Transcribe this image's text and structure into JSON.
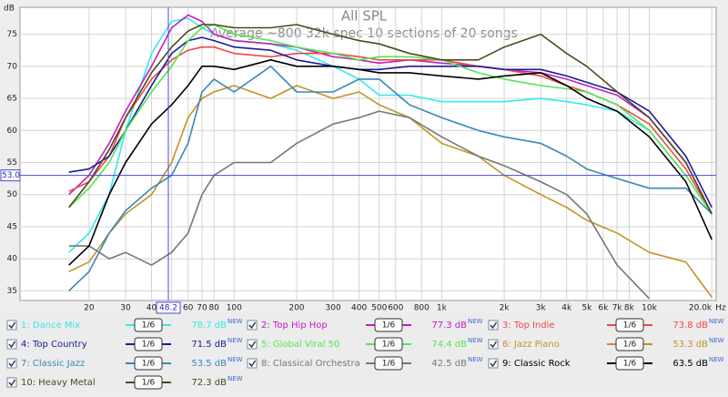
{
  "chart_data": {
    "type": "line",
    "title": "All SPL",
    "subtitle": "Average ~800 32k spec 10 sections of 20 songs",
    "x_label": "Hz",
    "y_label": "dB",
    "log_x": true,
    "grid": true,
    "xlim": [
      9.3,
      21000
    ],
    "ylim": [
      33.5,
      79.2
    ],
    "xticks": [
      20,
      30,
      40,
      50,
      60,
      70,
      80,
      100,
      200,
      300,
      400,
      500,
      600,
      800,
      {
        "value": 1000,
        "label": "1k"
      },
      {
        "value": 2000,
        "label": "2k"
      },
      {
        "value": 3000,
        "label": "3k"
      },
      {
        "value": 4000,
        "label": "4k"
      },
      {
        "value": 5000,
        "label": "5k"
      },
      {
        "value": 6000,
        "label": "6k"
      },
      {
        "value": 7000,
        "label": "7k"
      },
      {
        "value": 8000,
        "label": "8k"
      },
      {
        "value": 10000,
        "label": "10k"
      },
      {
        "value": 20000,
        "label": "20.0k"
      }
    ],
    "yticks": [
      35,
      40,
      45,
      50,
      55,
      60,
      65,
      70,
      75
    ],
    "cursor_x": {
      "value": 48.2,
      "label": "48.2"
    },
    "cursor_y": {
      "value": 53,
      "label": "53.0"
    },
    "x": [
      16,
      20,
      25,
      30,
      40,
      50,
      60,
      70,
      80,
      100,
      150,
      200,
      300,
      400,
      500,
      700,
      1000,
      1500,
      2000,
      3000,
      4000,
      5000,
      7000,
      10000,
      15000,
      20000
    ],
    "series": [
      {
        "name": "1: Dance Mix",
        "color": "#33e8f0",
        "level_label": "78.7 dB",
        "level_badge": "NEW",
        "smoothing": "1/6",
        "values": [
          41,
          44,
          50,
          60,
          72,
          77,
          77.5,
          76,
          75,
          74,
          73.5,
          72.5,
          70,
          68,
          65.5,
          65.5,
          64.5,
          64.5,
          64.5,
          65,
          64.5,
          64,
          63,
          60,
          53,
          47
        ]
      },
      {
        "name": "2: Top Hip Hop",
        "color": "#c020c0",
        "level_label": "77.3 dB",
        "level_badge": "NEW",
        "smoothing": "1/6",
        "values": [
          50,
          53,
          58,
          63,
          70,
          76,
          78,
          77,
          75,
          74,
          73.5,
          73,
          71.5,
          71,
          70.5,
          71,
          70.5,
          70,
          69.5,
          69,
          68,
          67,
          65.5,
          62,
          55,
          47
        ]
      },
      {
        "name": "3: Top Indie",
        "color": "#f04848",
        "level_label": "73.8 dB",
        "level_badge": "NEW",
        "smoothing": "1/6",
        "values": [
          50.5,
          52,
          56,
          62,
          68,
          71,
          72.5,
          73,
          73,
          72,
          71.5,
          72,
          72,
          71.5,
          71,
          71,
          71,
          70,
          69.5,
          68.5,
          67,
          66,
          64,
          61,
          54,
          47
        ]
      },
      {
        "name": "4: Top Country",
        "color": "#1a1a9a",
        "level_label": "71.5 dB",
        "level_badge": "NEW",
        "smoothing": "1/6",
        "values": [
          53.5,
          54,
          56,
          60,
          67,
          72,
          74,
          74.5,
          74,
          73,
          72.5,
          71,
          70,
          69.5,
          69.5,
          70,
          70,
          70,
          69.5,
          69.5,
          68.5,
          67.5,
          66,
          63,
          56,
          48
        ]
      },
      {
        "name": "5: Global Viral 50",
        "color": "#50e850",
        "level_label": "74.4 dB",
        "level_badge": "NEW",
        "smoothing": "1/6",
        "values": [
          48,
          51,
          55,
          60,
          66,
          70,
          74,
          76,
          76.5,
          75,
          74,
          73,
          72,
          71,
          71.5,
          71.5,
          71,
          69,
          68,
          67,
          66.5,
          66,
          64,
          60,
          53,
          47
        ]
      },
      {
        "name": "6: Jazz Piano",
        "color": "#c09428",
        "level_label": "53.3 dB",
        "level_badge": "NEW",
        "smoothing": "1/6",
        "values": [
          38,
          39.5,
          44,
          47,
          50,
          55,
          62,
          65,
          66,
          67,
          65,
          67,
          65,
          66,
          64,
          62,
          58,
          56,
          53,
          50,
          48,
          46,
          44,
          41,
          39.5,
          34
        ]
      },
      {
        "name": "7: Classic Jazz",
        "color": "#3a88b8",
        "level_label": "53.5 dB",
        "level_badge": "NEW",
        "smoothing": "1/6",
        "values": [
          35,
          38,
          44,
          47.5,
          51,
          53,
          58,
          66,
          68,
          66,
          70,
          66,
          66,
          68,
          68,
          64,
          62,
          60,
          59,
          58,
          56,
          54,
          52.5,
          51,
          51,
          47
        ]
      },
      {
        "name": "8: Classical Orchestra",
        "color": "#777777",
        "level_label": "42.5 dB",
        "level_badge": "NEW",
        "smoothing": "1/6",
        "values": [
          42,
          42,
          40,
          41,
          39,
          41,
          44,
          50,
          53,
          55,
          55,
          58,
          61,
          62,
          63,
          62,
          59,
          56,
          54.5,
          52,
          50,
          47,
          39,
          33.8,
          null,
          null
        ]
      },
      {
        "name": "9: Classic Rock",
        "color": "#000000",
        "level_label": "63.5 dB",
        "level_badge": "NEW",
        "smoothing": "1/6",
        "values": [
          39,
          42,
          50,
          55,
          61,
          64,
          67,
          70,
          70,
          69.5,
          71,
          70,
          70,
          69.5,
          69,
          69,
          68.5,
          68,
          68.5,
          69,
          67,
          65,
          63,
          59,
          52,
          43
        ]
      },
      {
        "name": "10: Heavy Metal",
        "color": "#4a4a20",
        "level_label": "72.3 dB",
        "level_badge": "NEW",
        "smoothing": "1/6",
        "values": [
          48,
          52,
          57,
          62,
          69,
          73,
          75.5,
          76.5,
          76.5,
          76,
          76,
          76.5,
          75,
          74,
          73.5,
          72,
          71,
          71,
          73,
          75,
          72,
          70,
          66,
          62,
          55,
          47
        ]
      }
    ]
  }
}
